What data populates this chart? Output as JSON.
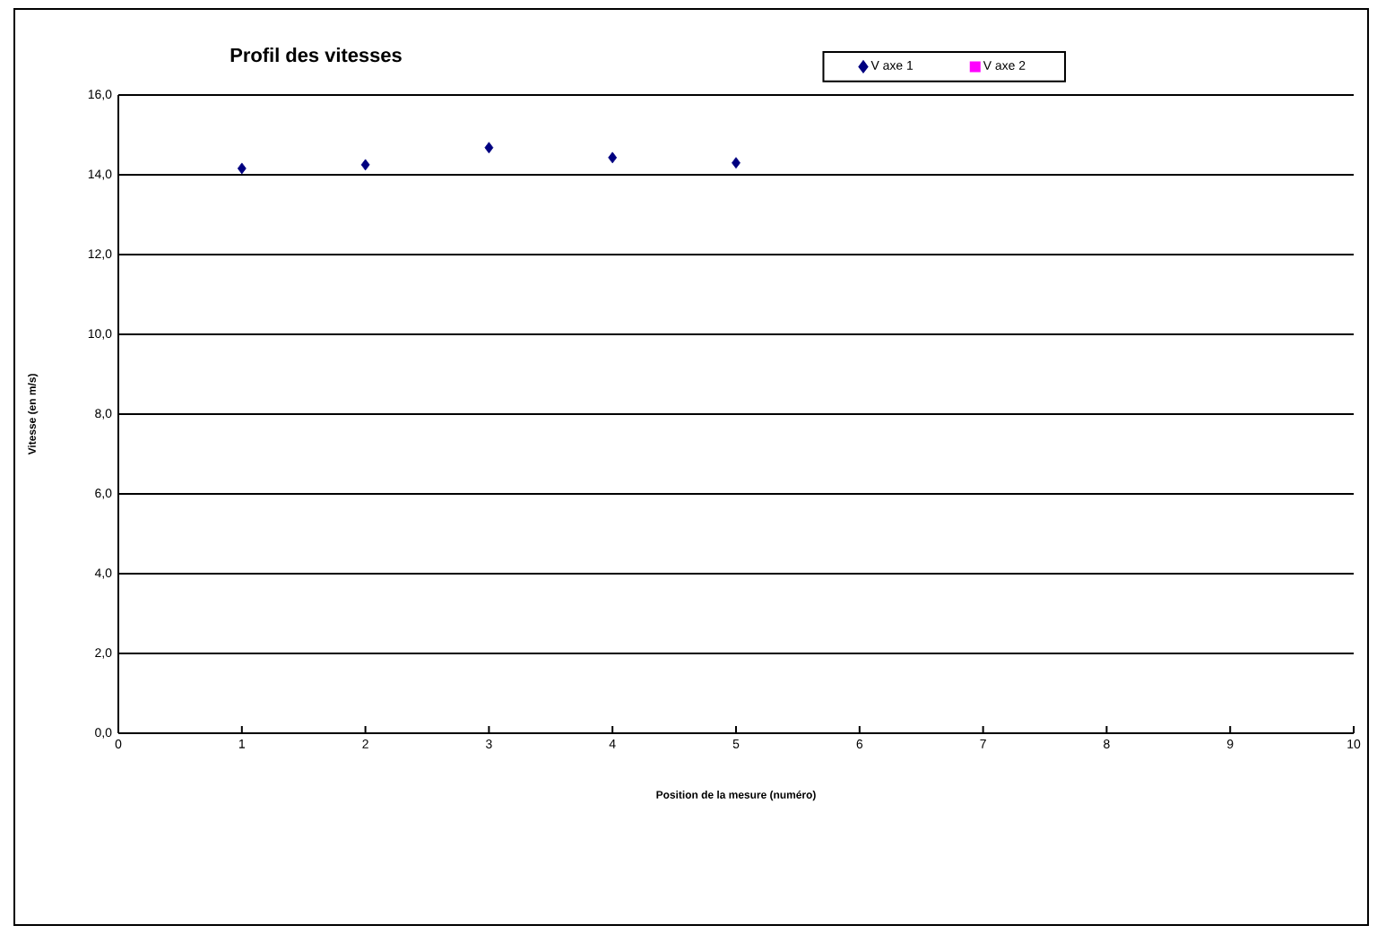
{
  "chart_data": {
    "type": "scatter",
    "title": "Profil des vitesses",
    "xlabel": "Position de la mesure (numéro)",
    "ylabel": "Vitesse (en m/s)",
    "x": [
      1,
      2,
      3,
      4,
      5
    ],
    "series": [
      {
        "name": "V axe 1",
        "color": "#000080",
        "marker": "diamond",
        "values": [
          14.16,
          14.25,
          14.68,
          14.43,
          14.3
        ]
      },
      {
        "name": "V axe 2",
        "color": "#ff00ff",
        "marker": "square",
        "values": [
          null,
          null,
          null,
          null,
          null
        ]
      }
    ],
    "xlim": [
      0,
      10
    ],
    "xticks": [
      0,
      1,
      2,
      3,
      4,
      5,
      6,
      7,
      8,
      9,
      10
    ],
    "ylim": [
      0,
      16
    ],
    "yticks": [
      {
        "value": 0,
        "label": "0,0"
      },
      {
        "value": 2,
        "label": "2,0"
      },
      {
        "value": 4,
        "label": "4,0"
      },
      {
        "value": 6,
        "label": "6,0"
      },
      {
        "value": 8,
        "label": "8,0"
      },
      {
        "value": 10,
        "label": "10,0"
      },
      {
        "value": 12,
        "label": "12,0"
      },
      {
        "value": 14,
        "label": "14,0"
      },
      {
        "value": 16,
        "label": "16,0"
      }
    ],
    "grid": "y",
    "legend": "top right"
  }
}
